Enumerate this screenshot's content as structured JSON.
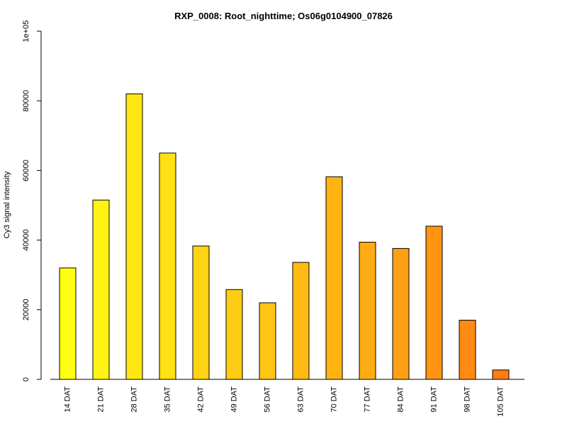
{
  "chart_data": {
    "type": "bar",
    "title": "RXP_0008: Root_nighttime; Os06g0104900_07826",
    "xlabel": "",
    "ylabel": "Cy3 signal intensity",
    "ylim": [
      0,
      100000
    ],
    "yticks": [
      0,
      20000,
      40000,
      60000,
      80000,
      100000
    ],
    "ytick_labels": [
      "0",
      "20000",
      "40000",
      "60000",
      "80000",
      "1e+05"
    ],
    "grid": false,
    "legend": "none",
    "categories": [
      "14 DAT",
      "21 DAT",
      "28 DAT",
      "35 DAT",
      "42 DAT",
      "49 DAT",
      "56 DAT",
      "63 DAT",
      "70 DAT",
      "77 DAT",
      "84 DAT",
      "91 DAT",
      "98 DAT",
      "105 DAT"
    ],
    "values": [
      32000,
      51500,
      82000,
      65000,
      38300,
      25800,
      22000,
      33600,
      58200,
      39400,
      37600,
      44000,
      17000,
      2700
    ],
    "colors": [
      "#ffff12",
      "#fff314",
      "#ffe613",
      "#ffe114",
      "#ffd414",
      "#ffcc14",
      "#ffc514",
      "#ffbb14",
      "#ffb414",
      "#ffac14",
      "#ff9f14",
      "#ff9314",
      "#ff8b14",
      "#fc7d14"
    ],
    "bar_outline_color": "#000000"
  }
}
